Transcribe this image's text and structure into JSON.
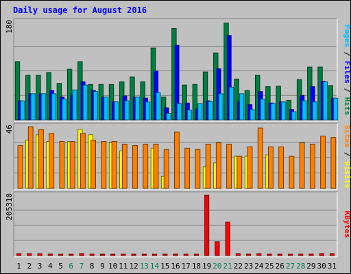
{
  "chart_data": {
    "type": "bar",
    "title": "Daily usage for August 2016",
    "categories": [
      "1",
      "2",
      "3",
      "4",
      "5",
      "6",
      "7",
      "8",
      "9",
      "10",
      "11",
      "12",
      "13",
      "14",
      "15",
      "16",
      "17",
      "18",
      "19",
      "20",
      "21",
      "22",
      "23",
      "24",
      "25",
      "26",
      "27",
      "28",
      "29",
      "30",
      "31"
    ],
    "weekend_days": [
      "6",
      "7",
      "13",
      "14",
      "20",
      "21",
      "27",
      "28"
    ],
    "panels": [
      {
        "id": "hits-files-pages",
        "ymax_label": "180",
        "ylim": [
          0,
          180
        ],
        "labels": [
          {
            "text": "Pages",
            "color": "#00c0ff"
          },
          {
            "text": " / ",
            "color": "#000000"
          },
          {
            "text": "Files",
            "color": "#0000ff"
          },
          {
            "text": " / ",
            "color": "#000000"
          },
          {
            "text": "Hits",
            "color": "#008040"
          }
        ],
        "series": [
          {
            "name": "Hits",
            "color": "#008040",
            "values": [
              107,
              82,
              82,
              87,
              67,
              93,
              107,
              65,
              65,
              65,
              70,
              79,
              70,
              132,
              42,
              168,
              64,
              65,
              88,
              123,
              178,
              75,
              54,
              82,
              61,
              62,
              36,
              74,
              97,
              97,
              63
            ]
          },
          {
            "name": "Files",
            "color": "#0000ff",
            "values": [
              35,
              48,
              48,
              54,
              42,
              45,
              70,
              54,
              42,
              33,
              44,
              42,
              40,
              90,
              22,
              137,
              31,
              20,
              35,
              94,
              155,
              33,
              28,
              52,
              31,
              33,
              19,
              45,
              61,
              71,
              40
            ]
          },
          {
            "name": "Pages",
            "color": "#00c0ff",
            "values": [
              35,
              48,
              48,
              48,
              38,
              55,
              64,
              52,
              42,
              33,
              35,
              42,
              33,
              50,
              12,
              30,
              18,
              30,
              34,
              48,
              60,
              48,
              19,
              38,
              30,
              33,
              15,
              35,
              33,
              70,
              40
            ]
          }
        ]
      },
      {
        "id": "visits-sites",
        "ymax_label": "46",
        "ylim": [
          0,
          46
        ],
        "labels": [
          {
            "text": "Sites",
            "color": "#ff8000"
          },
          {
            "text": " / ",
            "color": "#000000"
          },
          {
            "text": "Visits",
            "color": "#ffff00"
          }
        ],
        "series": [
          {
            "name": "Visits",
            "color": "#ffff00",
            "values": [
              0,
              36,
              40,
              35,
              0,
              35,
              44,
              40,
              0,
              34,
              28,
              0,
              0,
              30,
              9,
              0,
              0,
              0,
              16,
              19,
              0,
              24,
              24,
              0,
              25,
              0,
              0,
              0,
              0,
              0,
              0
            ]
          },
          {
            "name": "Sites",
            "color": "#ff8000",
            "values": [
              32,
              46,
              44,
              41,
              35,
              35,
              41,
              36,
              35,
              35,
              33,
              32,
              33,
              33,
              29,
              42,
              30,
              29,
              33,
              34,
              33,
              24,
              31,
              45,
              31,
              31,
              24,
              34,
              33,
              39,
              38
            ]
          }
        ]
      },
      {
        "id": "kbytes",
        "ymax_label": "205310",
        "ylim": [
          0,
          205310
        ],
        "labels": [
          {
            "text": "KBytes",
            "color": "#ff0000"
          }
        ],
        "series": [
          {
            "name": "KBytes",
            "color": "#ff0000",
            "values": [
              6000,
              6000,
              6000,
              5000,
              4000,
              4000,
              6000,
              4000,
              4000,
              4000,
              3000,
              4000,
              3000,
              4000,
              3000,
              5000,
              4000,
              3000,
              205310,
              47000,
              114000,
              6000,
              5000,
              6000,
              4000,
              4000,
              3000,
              5000,
              5000,
              6000,
              6000
            ]
          }
        ]
      }
    ]
  }
}
